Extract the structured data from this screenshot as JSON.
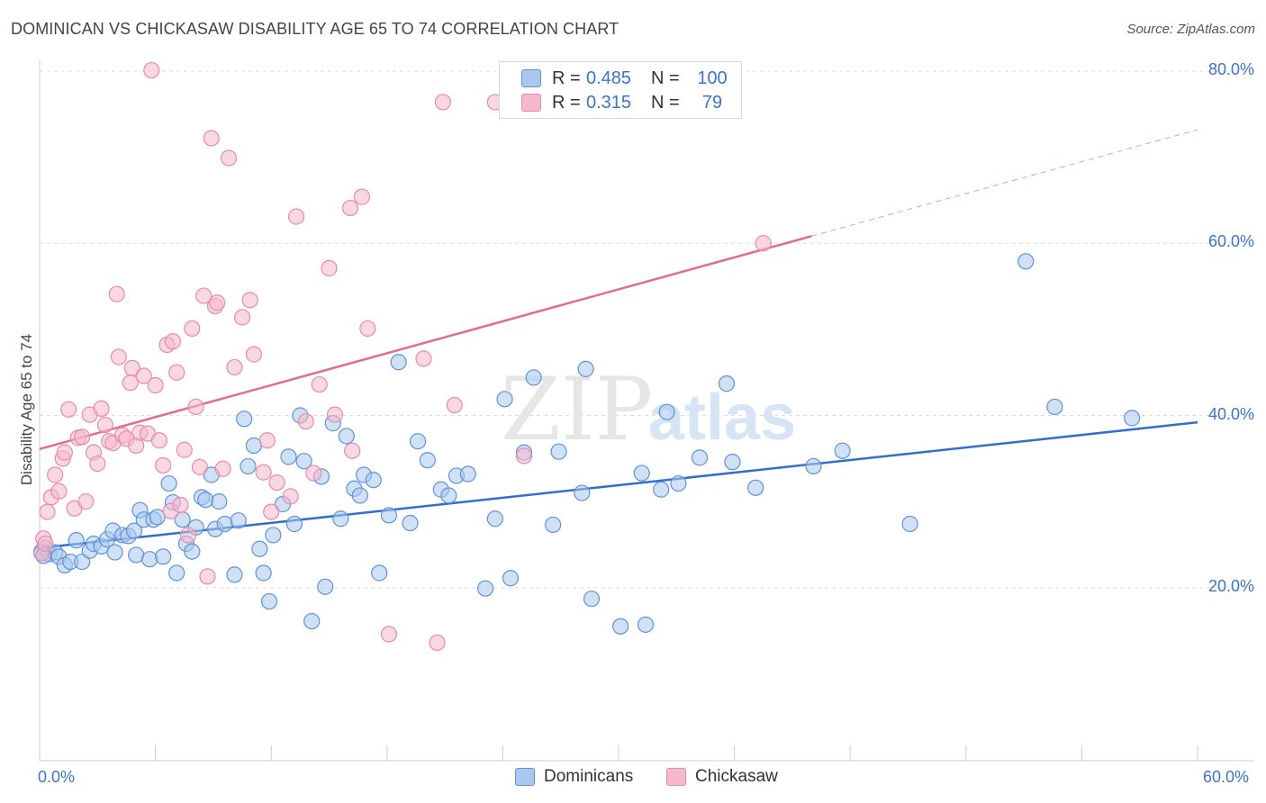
{
  "title": "DOMINICAN VS CHICKASAW DISABILITY AGE 65 TO 74 CORRELATION CHART",
  "source": "Source: ZipAtlas.com",
  "watermark": {
    "zip": "ZIP",
    "atlas": "atlas"
  },
  "colors": {
    "blue_fill": "#a9c8ef",
    "blue_stroke": "#5e93d6",
    "blue_line": "#2f6fce",
    "pink_fill": "#f5b8cc",
    "pink_stroke": "#e98aa8",
    "pink_line": "#e36a93",
    "tick_text": "#3b74c7",
    "grid": "#dddddd"
  },
  "legend": {
    "rows": [
      {
        "r_label": "R =",
        "r_value": "0.485",
        "n_label": "N =",
        "n_value": "100",
        "color": "#a9c8ef"
      },
      {
        "r_label": "R =",
        "r_value": "0.315",
        "n_label": "N =",
        "n_value": "79",
        "color": "#f5b8cc"
      }
    ]
  },
  "bottom_legend": [
    {
      "label": "Dominicans",
      "color": "#a9c8ef"
    },
    {
      "label": "Chickasaw",
      "color": "#f5b8cc"
    }
  ],
  "chart_data": {
    "type": "scatter",
    "title": "DOMINICAN VS CHICKASAW DISABILITY AGE 65 TO 74 CORRELATION CHART",
    "xlabel": "",
    "ylabel": "Disability Age 65 to 74",
    "xlim": [
      0,
      60
    ],
    "ylim": [
      0,
      85
    ],
    "x_tick_labels": [
      "0.0%",
      "60.0%"
    ],
    "y_tick_labels": [
      "20.0%",
      "40.0%",
      "60.0%",
      "80.0%"
    ],
    "y_ticks": [
      20,
      40,
      60,
      80
    ],
    "grid": true,
    "series": [
      {
        "name": "Dominicans",
        "trend": {
          "x0": 0,
          "y0": 24.6,
          "x1": 60,
          "y1": 39.2,
          "solid_until": 60
        },
        "points": [
          [
            0.1,
            24.2
          ],
          [
            0.3,
            24.6
          ],
          [
            0.5,
            23.9
          ],
          [
            0.8,
            24.1
          ],
          [
            1.0,
            23.6
          ],
          [
            1.3,
            22.6
          ],
          [
            1.6,
            23.0
          ],
          [
            1.9,
            25.5
          ],
          [
            2.2,
            23.0
          ],
          [
            2.6,
            24.3
          ],
          [
            2.8,
            25.1
          ],
          [
            3.2,
            24.8
          ],
          [
            3.5,
            25.6
          ],
          [
            3.8,
            26.6
          ],
          [
            3.9,
            24.1
          ],
          [
            4.3,
            26.1
          ],
          [
            4.6,
            26.0
          ],
          [
            4.9,
            26.6
          ],
          [
            5.0,
            23.8
          ],
          [
            5.2,
            29.0
          ],
          [
            5.4,
            27.9
          ],
          [
            5.7,
            23.3
          ],
          [
            5.9,
            27.9
          ],
          [
            6.1,
            28.2
          ],
          [
            6.4,
            23.6
          ],
          [
            6.7,
            32.1
          ],
          [
            6.9,
            29.9
          ],
          [
            7.1,
            21.7
          ],
          [
            7.4,
            27.9
          ],
          [
            7.6,
            25.1
          ],
          [
            7.9,
            24.2
          ],
          [
            8.1,
            27.0
          ],
          [
            8.4,
            30.5
          ],
          [
            8.6,
            30.2
          ],
          [
            8.9,
            33.1
          ],
          [
            9.1,
            26.8
          ],
          [
            9.3,
            30.0
          ],
          [
            9.6,
            27.4
          ],
          [
            10.1,
            21.5
          ],
          [
            10.3,
            27.8
          ],
          [
            10.6,
            39.6
          ],
          [
            10.8,
            34.1
          ],
          [
            11.1,
            36.5
          ],
          [
            11.4,
            24.5
          ],
          [
            11.6,
            21.7
          ],
          [
            11.9,
            18.4
          ],
          [
            12.1,
            26.1
          ],
          [
            12.6,
            29.7
          ],
          [
            12.9,
            35.2
          ],
          [
            13.2,
            27.4
          ],
          [
            13.5,
            40.0
          ],
          [
            13.7,
            34.7
          ],
          [
            14.1,
            16.1
          ],
          [
            14.6,
            32.9
          ],
          [
            14.8,
            20.1
          ],
          [
            15.2,
            39.1
          ],
          [
            15.6,
            28.0
          ],
          [
            15.9,
            37.6
          ],
          [
            16.3,
            31.5
          ],
          [
            16.6,
            30.7
          ],
          [
            16.8,
            33.1
          ],
          [
            17.3,
            32.5
          ],
          [
            17.6,
            21.7
          ],
          [
            18.1,
            28.4
          ],
          [
            18.6,
            46.2
          ],
          [
            19.2,
            27.5
          ],
          [
            19.6,
            37.0
          ],
          [
            20.1,
            34.8
          ],
          [
            20.8,
            31.4
          ],
          [
            21.2,
            30.7
          ],
          [
            21.6,
            33.0
          ],
          [
            22.2,
            33.2
          ],
          [
            23.1,
            19.9
          ],
          [
            23.6,
            28.0
          ],
          [
            24.1,
            41.9
          ],
          [
            24.4,
            21.1
          ],
          [
            25.1,
            35.7
          ],
          [
            25.6,
            44.4
          ],
          [
            26.6,
            27.3
          ],
          [
            26.9,
            35.8
          ],
          [
            28.1,
            31.0
          ],
          [
            28.3,
            45.4
          ],
          [
            28.6,
            18.7
          ],
          [
            30.1,
            15.5
          ],
          [
            31.2,
            33.3
          ],
          [
            31.4,
            15.7
          ],
          [
            32.2,
            31.4
          ],
          [
            32.5,
            40.4
          ],
          [
            33.1,
            32.1
          ],
          [
            34.2,
            35.1
          ],
          [
            35.6,
            43.7
          ],
          [
            35.9,
            34.6
          ],
          [
            37.1,
            31.6
          ],
          [
            40.1,
            34.1
          ],
          [
            41.6,
            35.9
          ],
          [
            45.1,
            27.4
          ],
          [
            51.1,
            57.9
          ],
          [
            52.6,
            41.0
          ],
          [
            56.6,
            39.7
          ],
          [
            0.2,
            23.7
          ]
        ]
      },
      {
        "name": "Chickasaw",
        "trend": {
          "x0": 0,
          "y0": 36.1,
          "x1": 60,
          "y1": 73.2,
          "solid_until": 40
        },
        "points": [
          [
            0.2,
            25.7
          ],
          [
            0.4,
            28.8
          ],
          [
            0.6,
            30.5
          ],
          [
            0.8,
            33.1
          ],
          [
            1.0,
            31.2
          ],
          [
            1.2,
            35.0
          ],
          [
            1.3,
            35.7
          ],
          [
            1.5,
            40.7
          ],
          [
            1.8,
            29.2
          ],
          [
            2.0,
            37.4
          ],
          [
            2.2,
            37.5
          ],
          [
            2.4,
            30.0
          ],
          [
            2.6,
            40.1
          ],
          [
            2.8,
            35.7
          ],
          [
            3.0,
            34.4
          ],
          [
            3.2,
            40.8
          ],
          [
            3.4,
            38.9
          ],
          [
            3.6,
            37.0
          ],
          [
            3.8,
            36.8
          ],
          [
            4.0,
            54.1
          ],
          [
            4.1,
            46.8
          ],
          [
            4.3,
            37.7
          ],
          [
            4.5,
            37.3
          ],
          [
            4.7,
            43.8
          ],
          [
            4.8,
            45.5
          ],
          [
            5.0,
            36.5
          ],
          [
            5.2,
            38.0
          ],
          [
            5.4,
            44.6
          ],
          [
            5.6,
            37.9
          ],
          [
            5.8,
            80.1
          ],
          [
            6.0,
            43.5
          ],
          [
            6.2,
            37.1
          ],
          [
            6.4,
            34.2
          ],
          [
            6.6,
            48.2
          ],
          [
            6.8,
            28.9
          ],
          [
            6.9,
            48.6
          ],
          [
            7.1,
            45.0
          ],
          [
            7.3,
            29.6
          ],
          [
            7.5,
            36.0
          ],
          [
            7.7,
            26.1
          ],
          [
            7.9,
            50.1
          ],
          [
            8.1,
            41.0
          ],
          [
            8.3,
            34.0
          ],
          [
            8.5,
            53.9
          ],
          [
            8.7,
            21.3
          ],
          [
            8.9,
            72.2
          ],
          [
            9.1,
            52.7
          ],
          [
            9.2,
            53.1
          ],
          [
            9.5,
            33.8
          ],
          [
            9.8,
            69.9
          ],
          [
            10.1,
            45.6
          ],
          [
            10.5,
            51.4
          ],
          [
            10.9,
            53.4
          ],
          [
            11.1,
            47.1
          ],
          [
            11.6,
            33.4
          ],
          [
            11.8,
            37.1
          ],
          [
            12.0,
            28.8
          ],
          [
            12.3,
            32.2
          ],
          [
            13.0,
            30.6
          ],
          [
            13.3,
            63.1
          ],
          [
            13.8,
            39.3
          ],
          [
            14.2,
            33.3
          ],
          [
            14.5,
            43.6
          ],
          [
            15.0,
            57.1
          ],
          [
            15.3,
            40.1
          ],
          [
            16.1,
            64.1
          ],
          [
            16.2,
            35.9
          ],
          [
            16.7,
            65.4
          ],
          [
            17.0,
            50.1
          ],
          [
            18.1,
            14.6
          ],
          [
            19.9,
            46.6
          ],
          [
            20.6,
            13.6
          ],
          [
            20.9,
            76.4
          ],
          [
            21.5,
            41.2
          ],
          [
            23.6,
            76.4
          ],
          [
            25.1,
            35.3
          ],
          [
            37.5,
            60.0
          ],
          [
            0.1,
            24.0
          ],
          [
            0.3,
            25.1
          ]
        ]
      }
    ]
  }
}
